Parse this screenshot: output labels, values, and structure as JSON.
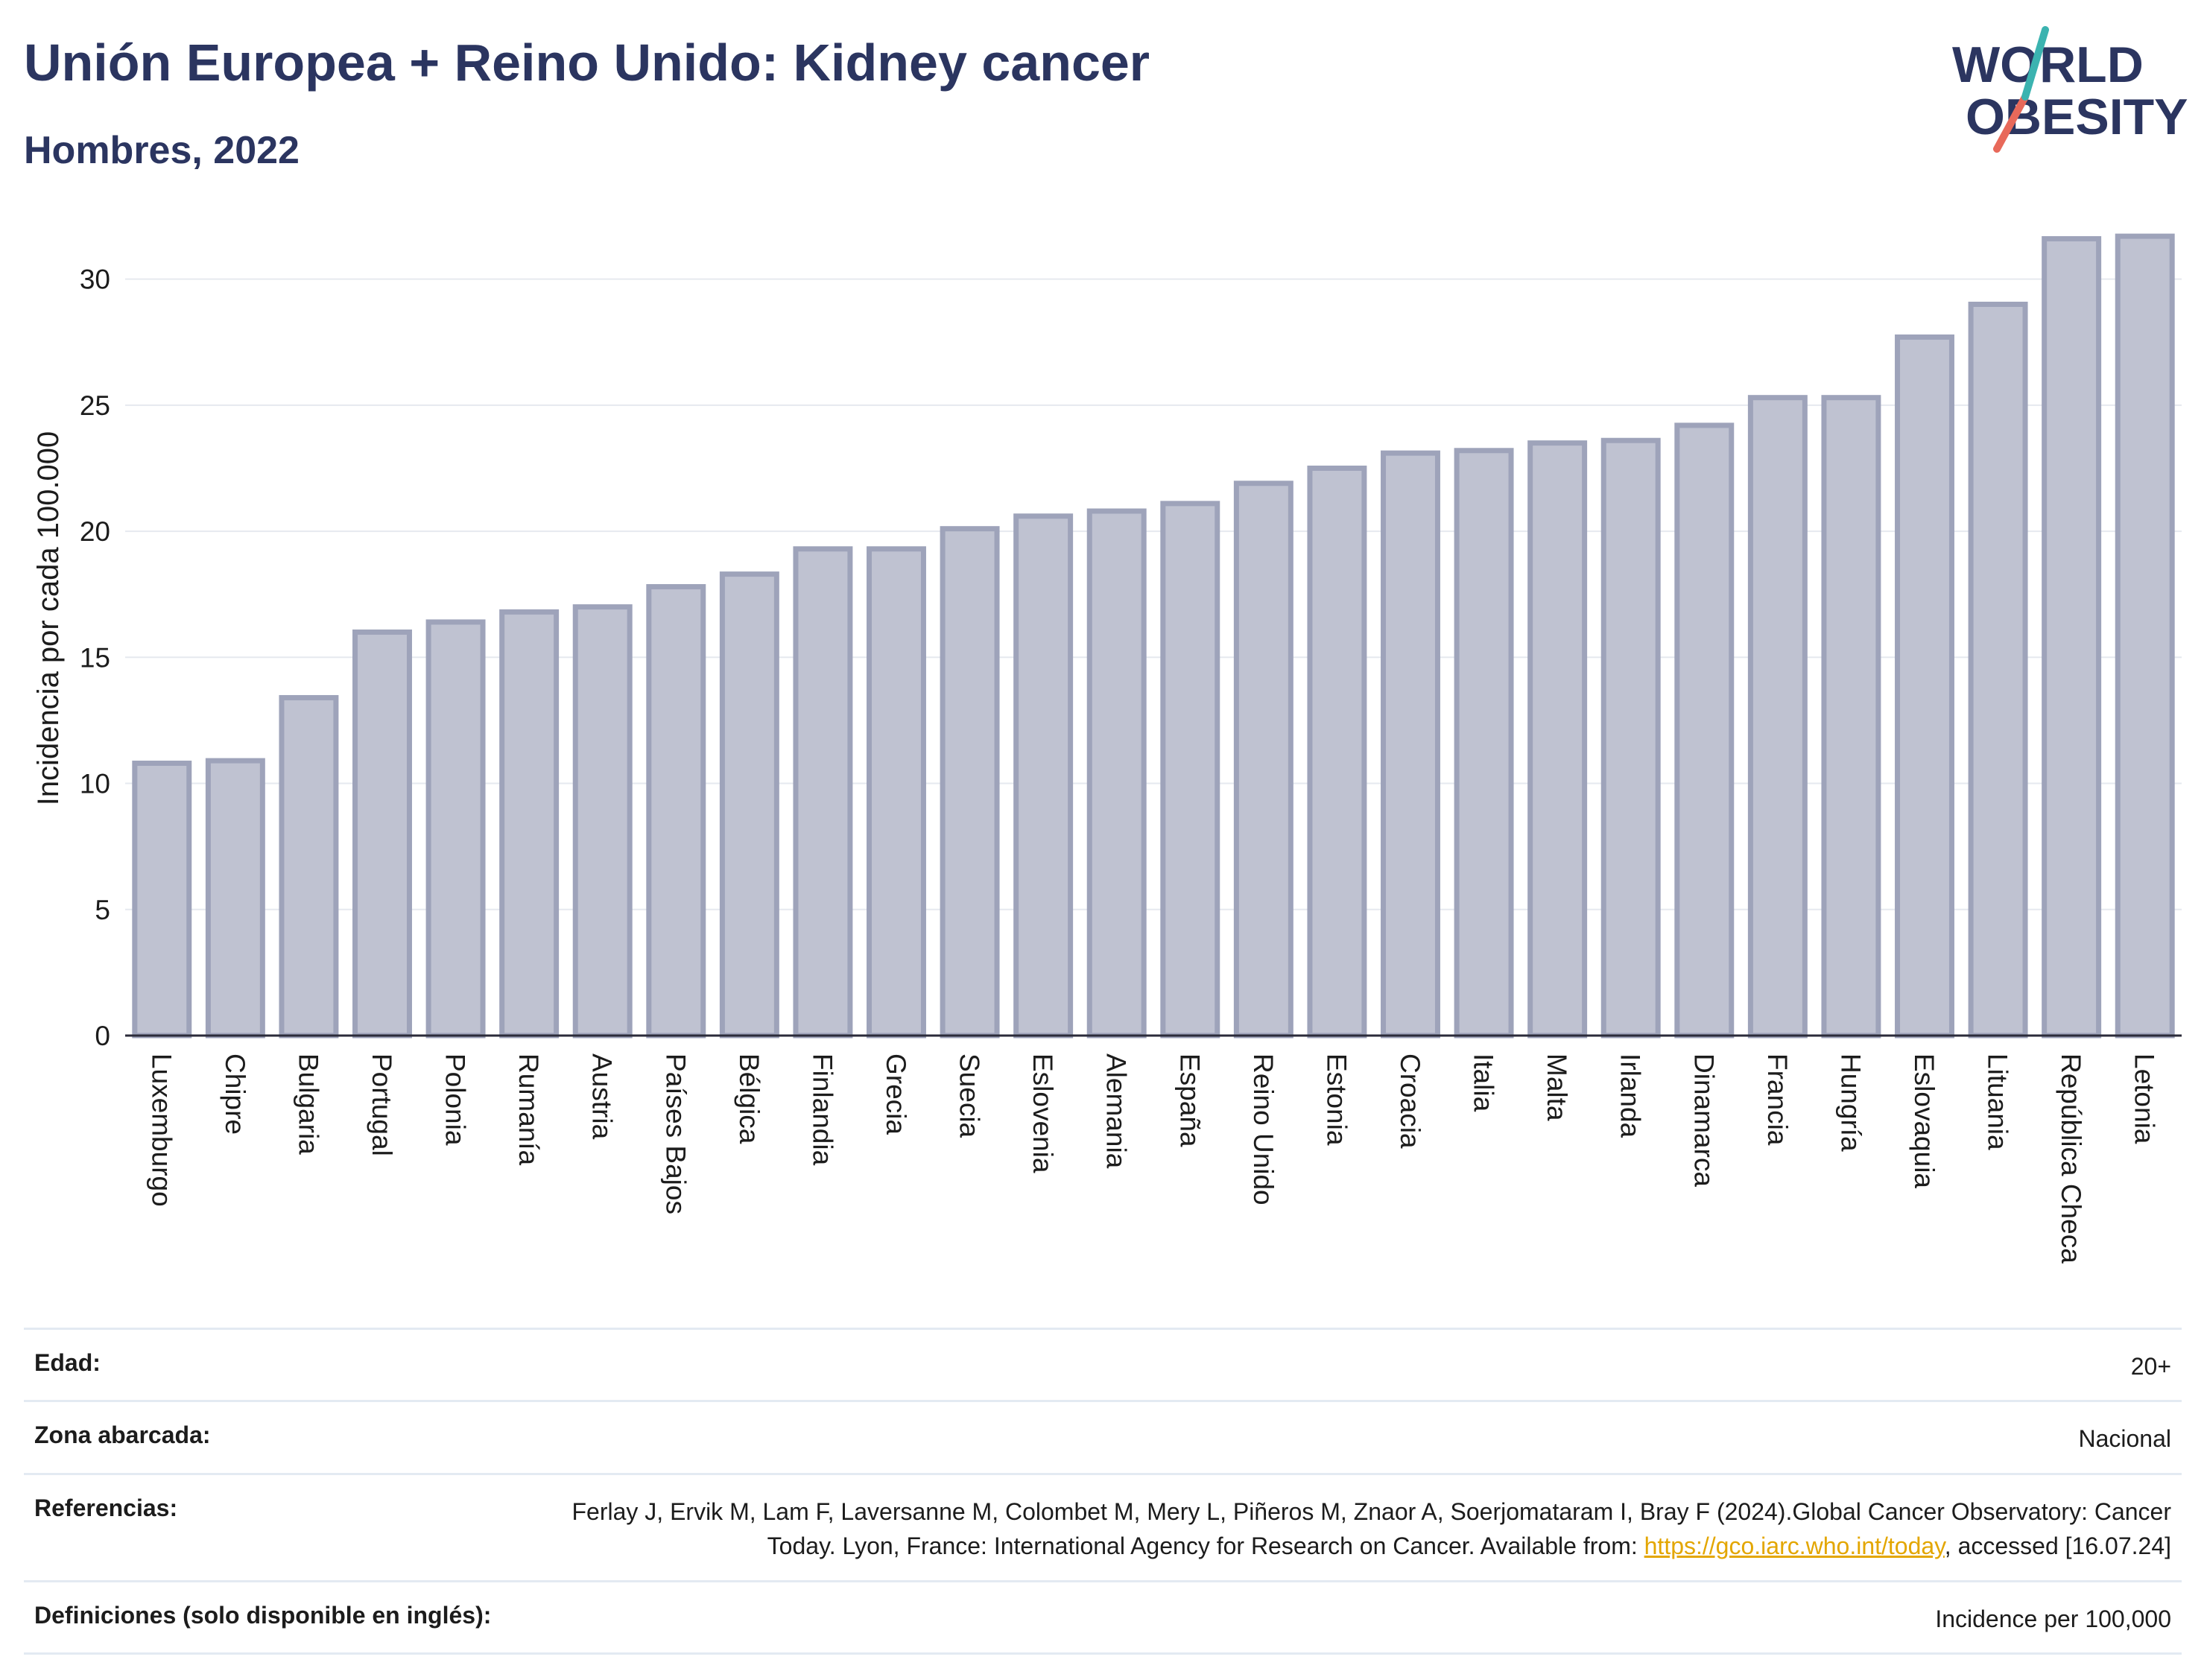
{
  "header": {
    "title": "Unión Europea + Reino Unido: Kidney cancer",
    "subtitle": "Hombres, 2022"
  },
  "logo": {
    "line1": "WORLD",
    "line2": "OBESITY"
  },
  "colors": {
    "bar_fill": "#bfc2d1",
    "bar_stroke": "#9ea3ba",
    "title": "#2b3560",
    "grid": "#e6e9ef",
    "link": "#e3a600",
    "logo_teal": "#3bb3b0",
    "logo_coral": "#e8695a"
  },
  "chart_data": {
    "type": "bar",
    "ylabel": "Incidencia por cada 100.000",
    "xlabel": "",
    "ylim": [
      0,
      32.5
    ],
    "yticks": [
      0,
      5,
      10,
      15,
      20,
      25,
      30
    ],
    "grid": true,
    "categories": [
      "Luxemburgo",
      "Chipre",
      "Bulgaria",
      "Portugal",
      "Polonia",
      "Rumanía",
      "Austria",
      "Países Bajos",
      "Bélgica",
      "Finlandia",
      "Grecia",
      "Suecia",
      "Eslovenia",
      "Alemania",
      "España",
      "Reino Unido",
      "Estonia",
      "Croacia",
      "Italia",
      "Malta",
      "Irlanda",
      "Dinamarca",
      "Francia",
      "Hungría",
      "Eslovaquia",
      "Lituania",
      "República Checa",
      "Letonia"
    ],
    "values": [
      10.8,
      10.9,
      13.4,
      16.0,
      16.4,
      16.8,
      17.0,
      17.8,
      18.3,
      19.3,
      19.3,
      20.1,
      20.6,
      20.8,
      21.1,
      21.9,
      22.5,
      23.1,
      23.2,
      23.5,
      23.6,
      24.2,
      25.3,
      25.3,
      27.7,
      29.0,
      31.6,
      31.7
    ]
  },
  "meta": [
    {
      "label": "Edad:",
      "value": "20+"
    },
    {
      "label": "Zona abarcada:",
      "value": "Nacional"
    },
    {
      "label": "Referencias:",
      "value_before": "Ferlay J, Ervik M, Lam F, Laversanne M, Colombet M, Mery L, Piñeros M, Znaor A, Soerjomataram I, Bray F (2024).Global Cancer Observatory: Cancer Today. Lyon, France: International Agency for Research on Cancer. Available from: ",
      "link": "https://gco.iarc.who.int/today",
      "value_after": ", accessed [16.07.24]"
    },
    {
      "label": "Definiciones (solo disponible en inglés):",
      "value": "Incidence per 100,000"
    }
  ]
}
